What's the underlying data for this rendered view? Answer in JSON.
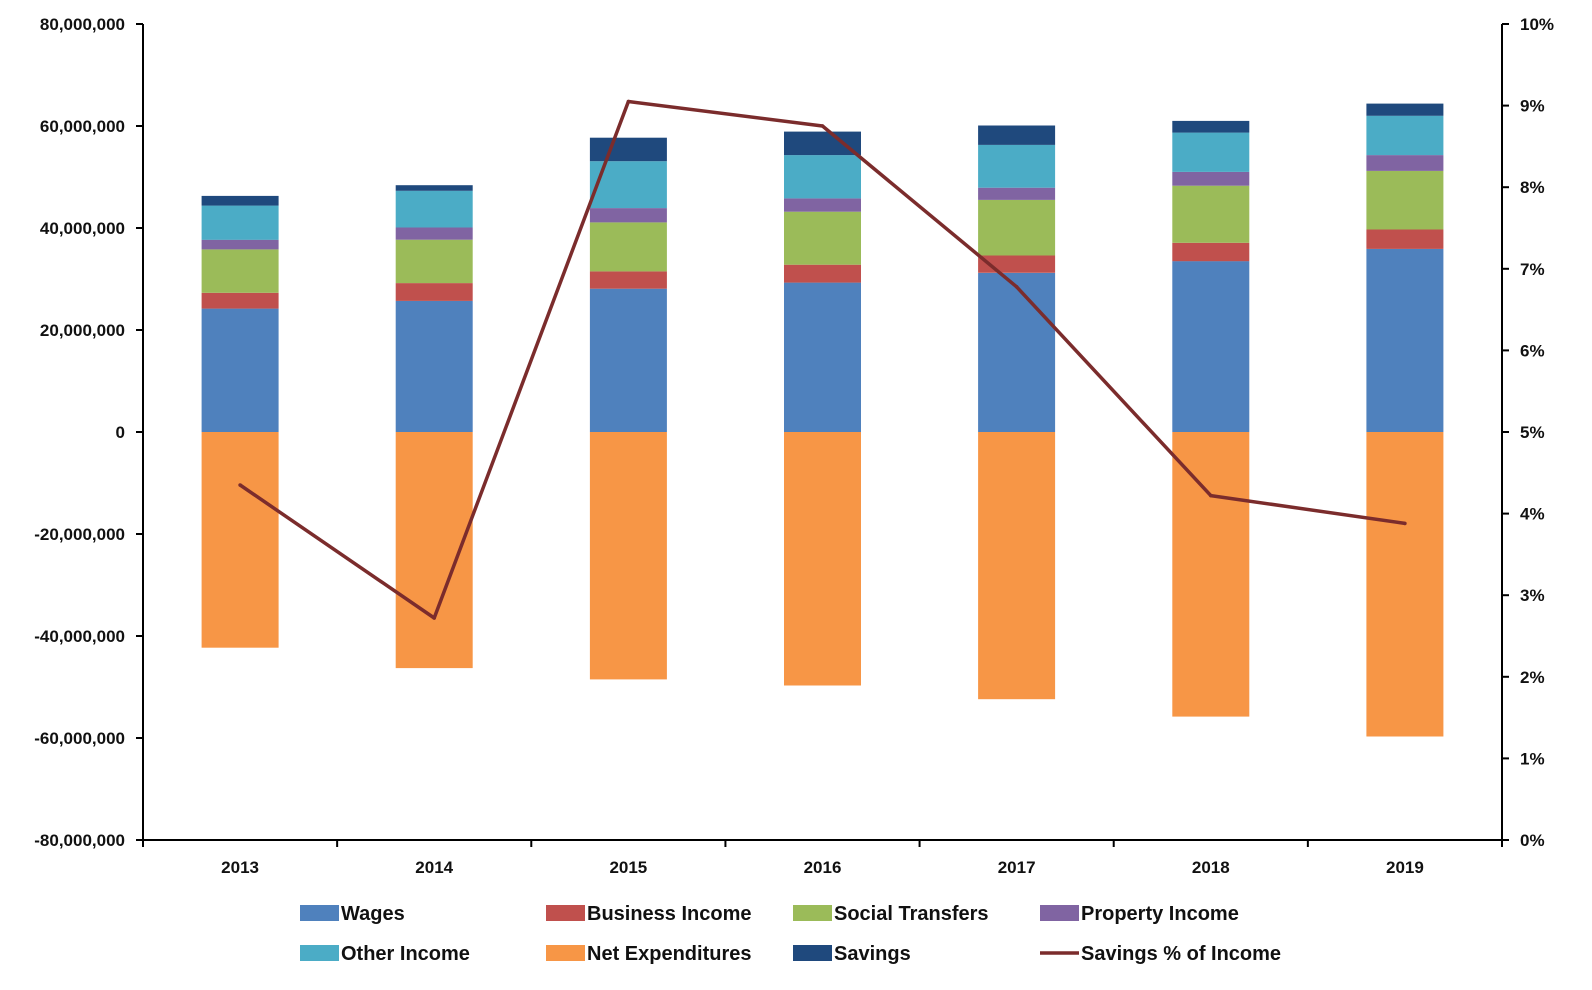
{
  "chart_data": {
    "type": "bar",
    "stacked": true,
    "categories": [
      "2013",
      "2014",
      "2015",
      "2016",
      "2017",
      "2018",
      "2019"
    ],
    "y_axis": {
      "ylim": [
        -80000000,
        80000000
      ],
      "ticks": [
        80000000,
        60000000,
        40000000,
        20000000,
        0,
        -20000000,
        -40000000,
        -60000000,
        -80000000
      ],
      "tick_labels": [
        "80,000,000",
        "60,000,000",
        "40,000,000",
        "20,000,000",
        "0",
        "-20,000,000",
        "-40,000,000",
        "-60,000,000",
        "-80,000,000"
      ]
    },
    "y2_axis": {
      "ylim": [
        0,
        10
      ],
      "ticks": [
        10,
        9,
        8,
        7,
        6,
        5,
        4,
        3,
        2,
        1,
        0
      ],
      "tick_labels": [
        "10%",
        "9%",
        "8%",
        "7%",
        "6%",
        "5%",
        "4%",
        "3%",
        "2%",
        "1%",
        "0%"
      ]
    },
    "series": [
      {
        "name": "Wages",
        "color": "#4F81BD",
        "values": [
          24200000,
          25700000,
          28100000,
          29300000,
          31200000,
          33500000,
          35900000
        ]
      },
      {
        "name": "Business Income",
        "color": "#C0504D",
        "values": [
          3100000,
          3500000,
          3400000,
          3500000,
          3400000,
          3600000,
          3800000
        ]
      },
      {
        "name": "Social Transfers",
        "color": "#9BBB59",
        "values": [
          8500000,
          8500000,
          9600000,
          10400000,
          10900000,
          11200000,
          11500000
        ]
      },
      {
        "name": "Property Income",
        "color": "#8064A2",
        "values": [
          1900000,
          2400000,
          2800000,
          2600000,
          2400000,
          2700000,
          3100000
        ]
      },
      {
        "name": "Other Income",
        "color": "#4BACC6",
        "values": [
          6700000,
          7200000,
          9200000,
          8500000,
          8400000,
          7700000,
          7700000
        ]
      },
      {
        "name": "Net Expenditures",
        "color": "#F79646",
        "values": [
          -42300000,
          -46300000,
          -48500000,
          -49700000,
          -52400000,
          -55800000,
          -59700000
        ]
      },
      {
        "name": "Savings",
        "color": "#1F497D",
        "values": [
          1900000,
          1100000,
          4600000,
          4600000,
          3800000,
          2300000,
          2400000
        ]
      }
    ],
    "line_series": {
      "name": "Savings % of Income",
      "color": "#7B2C2C",
      "axis": "secondary",
      "unit": "%",
      "values": [
        4.35,
        2.72,
        9.05,
        8.75,
        6.78,
        4.22,
        3.88
      ]
    },
    "legend": {
      "position": "bottom",
      "items": [
        "Wages",
        "Business Income",
        "Social Transfers",
        "Property Income",
        "Other Income",
        "Net Expenditures",
        "Savings",
        "Savings % of Income"
      ]
    },
    "grid": false
  }
}
